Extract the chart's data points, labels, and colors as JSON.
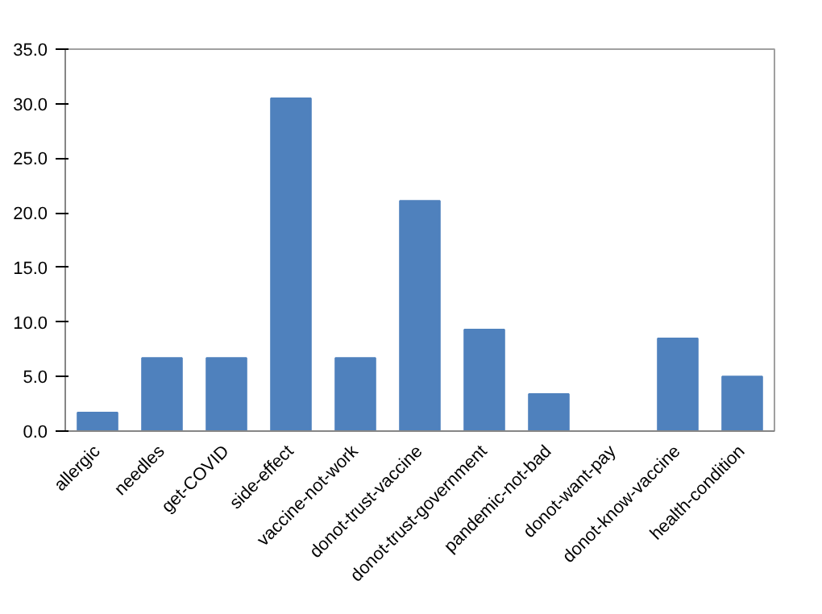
{
  "chart_data": {
    "type": "bar",
    "categories": [
      "allergic",
      "needles",
      "get-COVID",
      "side-effect",
      "vaccine-not-work",
      "donot-trust-vaccine",
      "donot-trust-government",
      "pandemic-not-bad",
      "donot-want-pay",
      "donot-know-vaccine",
      "health-condition"
    ],
    "values": [
      1.7,
      6.7,
      6.7,
      30.5,
      6.7,
      21.1,
      9.3,
      3.4,
      0,
      8.5,
      5.0
    ],
    "color": "#4f81bd",
    "ylim": [
      0,
      35
    ],
    "yticks": [
      {
        "value": 0,
        "label": "0.0"
      },
      {
        "value": 5,
        "label": "5.0"
      },
      {
        "value": 10,
        "label": "10.0"
      },
      {
        "value": 15,
        "label": "15.0"
      },
      {
        "value": 20,
        "label": "20.0"
      },
      {
        "value": 25,
        "label": "25.0"
      },
      {
        "value": 30,
        "label": "30.0"
      },
      {
        "value": 35,
        "label": "35.0"
      }
    ],
    "grid": false
  }
}
